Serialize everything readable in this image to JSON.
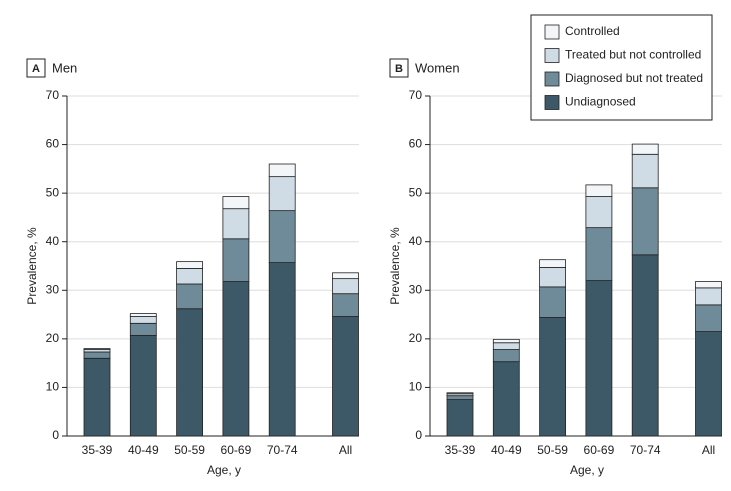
{
  "chart_data": [
    {
      "type": "stacked_bar",
      "panel": "A",
      "title": "Men",
      "x_label": "Age, y",
      "y_label": "Prevalence, %",
      "categories": [
        "35-39",
        "40-49",
        "50-59",
        "60-69",
        "70-74",
        "All"
      ],
      "series": [
        {
          "color": "#3d5967",
          "values": [
            16.0,
            20.7,
            26.2,
            31.8,
            35.7,
            24.6
          ]
        },
        {
          "color": "#6f8a98",
          "values": [
            1.3,
            2.5,
            5.1,
            8.8,
            10.7,
            4.7
          ]
        },
        {
          "color": "#cfdce5",
          "values": [
            0.5,
            1.4,
            3.2,
            6.2,
            7.0,
            3.1
          ]
        },
        {
          "color": "#f3f6f9",
          "values": [
            0.2,
            0.6,
            1.4,
            2.5,
            2.6,
            1.2
          ]
        }
      ],
      "ylim": [
        0,
        70
      ],
      "yticks": [
        0,
        10,
        20,
        30,
        40,
        50,
        60,
        70
      ],
      "grid": true
    },
    {
      "type": "stacked_bar",
      "panel": "B",
      "title": "Women",
      "x_label": "Age, y",
      "y_label": "Prevalence, %",
      "categories": [
        "35-39",
        "40-49",
        "50-59",
        "60-69",
        "70-74",
        "All"
      ],
      "series": [
        {
          "name": "Undiagnosed",
          "color": "#3d5967",
          "values": [
            7.5,
            15.3,
            24.4,
            32.0,
            37.3,
            21.5
          ]
        },
        {
          "name": "Diagnosed but not treated",
          "color": "#6f8a98",
          "values": [
            0.8,
            2.5,
            6.3,
            10.9,
            13.8,
            5.5
          ]
        },
        {
          "name": "Treated but not controlled",
          "color": "#cfdce5",
          "values": [
            0.4,
            1.4,
            4.0,
            6.4,
            6.9,
            3.5
          ]
        },
        {
          "name": "Controlled",
          "color": "#f3f6f9",
          "values": [
            0.2,
            0.7,
            1.6,
            2.4,
            2.1,
            1.3
          ]
        }
      ],
      "ylim": [
        0,
        70
      ],
      "yticks": [
        0,
        10,
        20,
        30,
        40,
        50,
        60,
        70
      ],
      "grid": true
    }
  ]
}
